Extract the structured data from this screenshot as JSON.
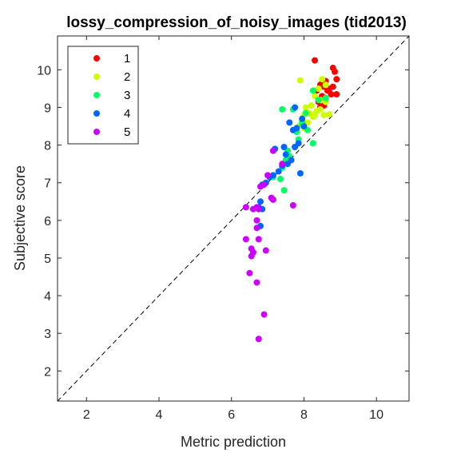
{
  "chart_data": {
    "type": "scatter",
    "title": "lossy_compression_of_noisy_images (tid2013)",
    "xlabel": "Metric prediction",
    "ylabel": "Subjective score",
    "xlim": [
      1.2,
      10.9
    ],
    "ylim": [
      1.2,
      10.9
    ],
    "xticks": [
      2,
      4,
      6,
      8,
      10
    ],
    "yticks": [
      2,
      3,
      4,
      5,
      6,
      7,
      8,
      9,
      10
    ],
    "grid": false,
    "legend_position": "top-left",
    "reference_line": "y = x (dashed)",
    "series": [
      {
        "name": "1",
        "color": "#ff0000",
        "points": [
          [
            8.3,
            10.25
          ],
          [
            8.8,
            10.05
          ],
          [
            8.85,
            9.95
          ],
          [
            8.9,
            9.75
          ],
          [
            8.45,
            9.6
          ],
          [
            8.55,
            9.55
          ],
          [
            8.65,
            9.45
          ],
          [
            8.35,
            9.45
          ],
          [
            8.75,
            9.35
          ],
          [
            8.9,
            9.35
          ],
          [
            8.5,
            9.3
          ],
          [
            8.6,
            9.25
          ],
          [
            8.4,
            9.15
          ],
          [
            8.55,
            9.05
          ],
          [
            8.45,
            9.0
          ],
          [
            8.7,
            9.5
          ],
          [
            8.8,
            9.55
          ],
          [
            8.5,
            9.65
          ],
          [
            8.6,
            9.7
          ]
        ]
      },
      {
        "name": "2",
        "color": "#ccff00",
        "points": [
          [
            7.9,
            9.72
          ],
          [
            8.5,
            9.75
          ],
          [
            8.6,
            9.6
          ],
          [
            8.4,
            9.5
          ],
          [
            8.3,
            9.3
          ],
          [
            8.45,
            9.2
          ],
          [
            8.6,
            9.15
          ],
          [
            8.2,
            9.05
          ],
          [
            8.05,
            9.0
          ],
          [
            8.35,
            8.9
          ],
          [
            8.15,
            8.85
          ],
          [
            8.0,
            8.8
          ],
          [
            8.3,
            8.8
          ],
          [
            8.55,
            8.8
          ],
          [
            8.7,
            8.82
          ],
          [
            7.95,
            8.65
          ],
          [
            8.1,
            8.6
          ],
          [
            8.25,
            8.75
          ],
          [
            7.85,
            8.5
          ],
          [
            8.0,
            8.45
          ],
          [
            8.45,
            8.95
          ]
        ]
      },
      {
        "name": "3",
        "color": "#00ff66",
        "points": [
          [
            7.4,
            8.95
          ],
          [
            7.7,
            8.95
          ],
          [
            8.25,
            9.45
          ],
          [
            8.4,
            9.2
          ],
          [
            8.6,
            9.25
          ],
          [
            8.05,
            8.85
          ],
          [
            7.95,
            8.6
          ],
          [
            7.8,
            8.35
          ],
          [
            7.85,
            8.15
          ],
          [
            8.25,
            8.05
          ],
          [
            7.75,
            7.95
          ],
          [
            7.55,
            7.85
          ],
          [
            7.6,
            7.7
          ],
          [
            7.5,
            7.6
          ],
          [
            7.4,
            7.4
          ],
          [
            7.55,
            7.55
          ],
          [
            7.35,
            7.1
          ],
          [
            7.45,
            6.8
          ],
          [
            7.15,
            7.15
          ],
          [
            7.95,
            8.55
          ],
          [
            8.1,
            8.4
          ]
        ]
      },
      {
        "name": "4",
        "color": "#0066ff",
        "points": [
          [
            7.75,
            9.0
          ],
          [
            7.6,
            8.6
          ],
          [
            7.95,
            8.7
          ],
          [
            7.8,
            8.45
          ],
          [
            8.0,
            8.5
          ],
          [
            7.85,
            8.05
          ],
          [
            7.75,
            7.95
          ],
          [
            7.45,
            7.95
          ],
          [
            7.5,
            7.75
          ],
          [
            7.65,
            7.6
          ],
          [
            7.55,
            7.5
          ],
          [
            7.9,
            7.25
          ],
          [
            7.4,
            7.45
          ],
          [
            7.3,
            7.3
          ],
          [
            7.15,
            7.2
          ],
          [
            7.05,
            7.15
          ],
          [
            6.95,
            7.0
          ],
          [
            6.85,
            6.95
          ],
          [
            6.8,
            6.5
          ],
          [
            6.85,
            6.3
          ],
          [
            6.75,
            6.35
          ],
          [
            6.8,
            5.85
          ],
          [
            7.2,
            7.9
          ],
          [
            7.7,
            8.4
          ]
        ]
      },
      {
        "name": "5",
        "color": "#cc00ff",
        "points": [
          [
            7.15,
            7.85
          ],
          [
            7.4,
            7.5
          ],
          [
            7.7,
            6.4
          ],
          [
            7.0,
            7.2
          ],
          [
            7.1,
            6.6
          ],
          [
            7.15,
            6.55
          ],
          [
            6.9,
            6.95
          ],
          [
            6.8,
            6.9
          ],
          [
            6.4,
            6.35
          ],
          [
            6.6,
            6.3
          ],
          [
            6.7,
            6.35
          ],
          [
            6.75,
            6.3
          ],
          [
            6.7,
            6.0
          ],
          [
            6.7,
            5.8
          ],
          [
            6.75,
            5.5
          ],
          [
            6.4,
            5.5
          ],
          [
            6.55,
            5.25
          ],
          [
            6.55,
            5.05
          ],
          [
            6.95,
            5.2
          ],
          [
            6.5,
            4.6
          ],
          [
            6.7,
            4.35
          ],
          [
            6.9,
            3.5
          ],
          [
            6.75,
            2.85
          ],
          [
            6.6,
            5.15
          ]
        ]
      }
    ]
  }
}
